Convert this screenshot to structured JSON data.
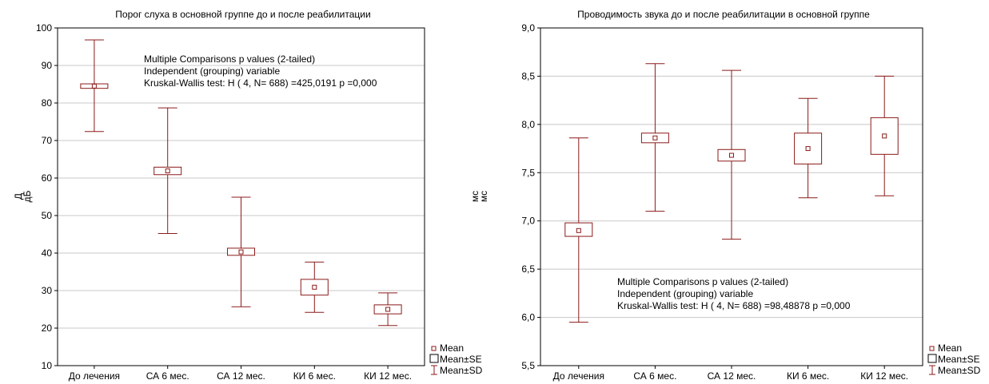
{
  "colors": {
    "mark": "#8b1a1a",
    "grid": "#c8c8c8",
    "axis": "#000000"
  },
  "legend": {
    "mean": "Mean",
    "se": "Mean±SE",
    "sd": "Mean±SD"
  },
  "chart_data": [
    {
      "type": "box",
      "title": "Порог слуха в основной группе до и после реабилитации",
      "ylabel_top": "Д",
      "ylabel_bottom": "дБ",
      "ylim": [
        10,
        100
      ],
      "yticks": [
        "10",
        "20",
        "30",
        "40",
        "50",
        "60",
        "70",
        "80",
        "90",
        "100"
      ],
      "categories": [
        "До лечения",
        "СА 6 мес.",
        "СА 12 мес.",
        "КИ 6 мес.",
        "КИ 12 мес."
      ],
      "mean": [
        84.5,
        61.9,
        40.3,
        30.9,
        25.0
      ],
      "se_low": [
        83.9,
        60.9,
        39.4,
        28.8,
        23.8
      ],
      "se_high": [
        85.1,
        62.9,
        41.3,
        33.0,
        26.2
      ],
      "sd_low": [
        72.4,
        45.2,
        25.7,
        24.2,
        20.7
      ],
      "sd_high": [
        96.8,
        78.7,
        54.9,
        37.6,
        29.4
      ],
      "annotation": [
        "Multiple Comparisons p values (2-tailed)",
        "Independent (grouping) variable",
        "Kruskal-Wallis test: H ( 4, N= 688) =425,0191 p =0,000"
      ],
      "grid": true
    },
    {
      "type": "box",
      "title": "Проводимость звука до и после реабилитации в основной группе",
      "ylabel_top": "мс",
      "ylabel_bottom": "мс",
      "ylim": [
        5.5,
        9.0
      ],
      "yticks": [
        "5,5",
        "6,0",
        "6,5",
        "7,0",
        "7,5",
        "8,0",
        "8,5",
        "9,0"
      ],
      "categories": [
        "До лечения",
        "СА 6 мес.",
        "СА 12 мес.",
        "КИ 6 мес.",
        "КИ 12 мес."
      ],
      "mean": [
        6.9,
        7.86,
        7.68,
        7.75,
        7.88
      ],
      "se_low": [
        6.84,
        7.81,
        7.62,
        7.59,
        7.69
      ],
      "se_high": [
        6.98,
        7.91,
        7.74,
        7.91,
        8.07
      ],
      "sd_low": [
        5.95,
        7.1,
        6.81,
        7.24,
        7.26
      ],
      "sd_high": [
        7.86,
        8.63,
        8.56,
        8.27,
        8.5
      ],
      "annotation": [
        "Multiple Comparisons p values (2-tailed)",
        "Independent (grouping) variable",
        "Kruskal-Wallis test: H ( 4, N= 688) =98,48878 p =0,000"
      ],
      "grid": true
    }
  ]
}
